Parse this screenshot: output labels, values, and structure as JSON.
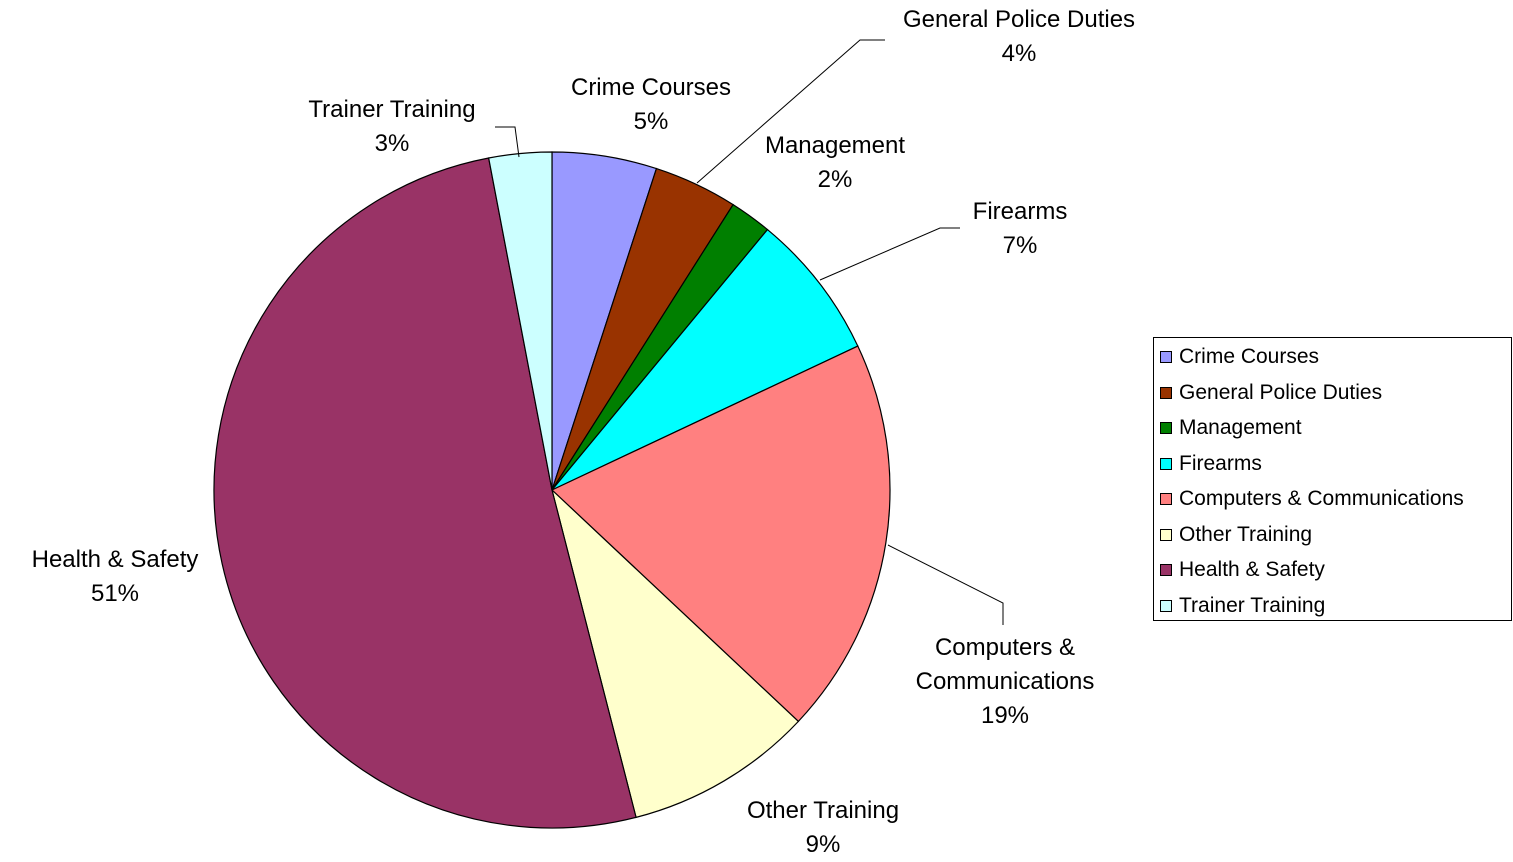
{
  "chart_data": {
    "type": "pie",
    "categories": [
      "Crime Courses",
      "General Police Duties",
      "Management",
      "Firearms",
      "Computers & Communications",
      "Other Training",
      "Health & Safety",
      "Trainer Training"
    ],
    "values": [
      5,
      4,
      2,
      7,
      19,
      9,
      51,
      3
    ],
    "value_labels": [
      "5%",
      "4%",
      "2%",
      "7%",
      "19%",
      "9%",
      "51%",
      "3%"
    ],
    "colors": [
      "#9999ff",
      "#993300",
      "#007f00",
      "#00ffff",
      "#ff8080",
      "#ffffcc",
      "#993366",
      "#ccffff"
    ],
    "legend": "right"
  }
}
